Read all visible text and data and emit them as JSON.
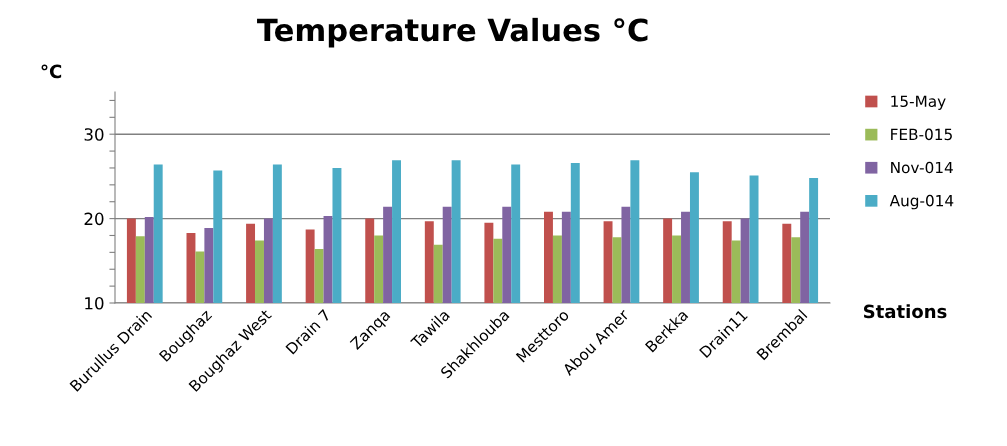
{
  "chart_data": {
    "type": "bar",
    "title": "Temperature Values °C",
    "ylabel": "°C",
    "xlabel": "Stations",
    "categories": [
      "Burullus Drain",
      "Boughaz",
      "Boughaz West",
      "Drain 7",
      "Zanqa",
      "Tawila",
      "Shakhlouba",
      "Mesttoro",
      "Abou Amer",
      "Berkka",
      "Drain11",
      "Brembal"
    ],
    "series": [
      {
        "name": "15-May",
        "color": "#c0504d",
        "values": [
          20.0,
          18.3,
          19.4,
          18.7,
          20.0,
          19.7,
          19.5,
          20.8,
          19.7,
          20.0,
          19.7,
          19.4
        ]
      },
      {
        "name": "FEB-015",
        "color": "#9bbb59",
        "values": [
          17.9,
          16.1,
          17.4,
          16.4,
          18.0,
          16.9,
          17.6,
          18.0,
          17.8,
          18.0,
          17.4,
          17.8
        ]
      },
      {
        "name": "Nov-014",
        "color": "#8064a2",
        "values": [
          20.2,
          18.9,
          20.0,
          20.3,
          21.4,
          21.4,
          21.4,
          20.8,
          21.4,
          20.8,
          20.0,
          20.8
        ]
      },
      {
        "name": "Aug-014",
        "color": "#4bacc6",
        "values": [
          26.4,
          25.7,
          26.4,
          26.0,
          26.9,
          26.9,
          26.4,
          26.6,
          26.9,
          25.5,
          25.1,
          24.8
        ]
      }
    ],
    "ylim": [
      10,
      35
    ],
    "yticks": [
      10,
      {
        "value": 12,
        "label": null
      },
      {
        "value": 14,
        "label": null
      },
      {
        "value": 16,
        "label": null
      },
      {
        "value": 18,
        "label": null
      },
      20,
      {
        "value": 22,
        "label": null
      },
      {
        "value": 24,
        "label": null
      },
      {
        "value": 26,
        "label": null
      },
      {
        "value": 28,
        "label": null
      },
      30,
      {
        "value": 32,
        "label": null
      },
      {
        "value": 34,
        "label": null
      }
    ],
    "grid": "y",
    "legend": "right"
  }
}
